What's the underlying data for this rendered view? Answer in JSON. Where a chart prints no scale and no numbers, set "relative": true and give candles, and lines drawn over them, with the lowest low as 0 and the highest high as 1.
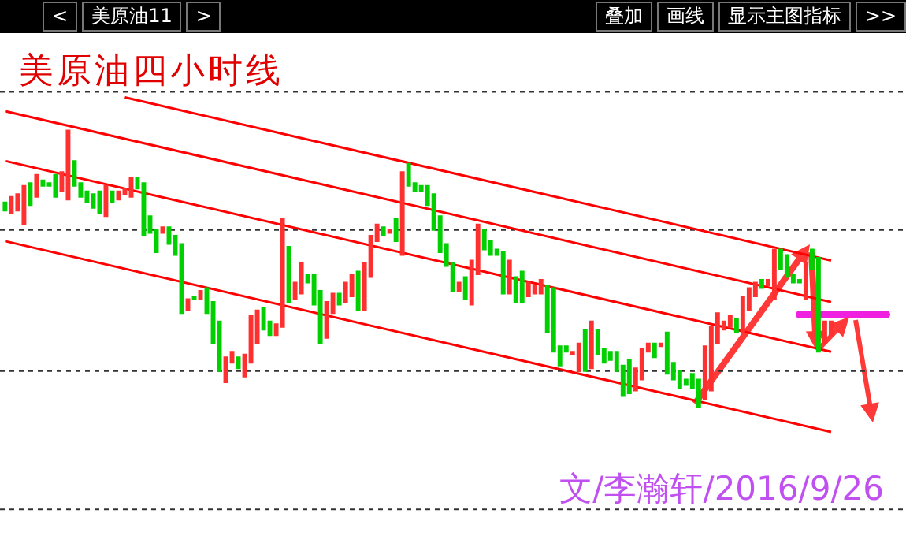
{
  "chart_data": {
    "type": "candlestick",
    "title": "美原油四小时线",
    "relative": true,
    "ref_lines": [
      {
        "axis": "y",
        "value": 1.14,
        "color": "#333333",
        "line_style": "dotted"
      },
      {
        "axis": "y",
        "value": 0.64,
        "color": "#333333",
        "line_style": "dotted"
      },
      {
        "axis": "y",
        "value": 0.13,
        "color": "#333333",
        "line_style": "dotted"
      },
      {
        "axis": "y",
        "value": -0.37,
        "color": "#333333",
        "line_style": "dotted"
      }
    ],
    "annotations": [
      "<",
      "美原油11",
      ">",
      "叠加",
      "画线",
      "显示主图指标",
      ">>",
      "文/李瀚轩/2016/9/26"
    ],
    "categories": [
      null,
      null,
      null,
      null,
      null,
      null,
      null,
      null,
      null,
      null,
      null,
      null,
      null,
      null,
      null,
      null,
      null,
      null,
      null,
      null,
      null,
      null,
      null,
      null,
      null,
      null,
      null,
      null,
      null,
      null,
      null,
      null,
      null,
      null,
      null,
      null,
      null,
      null,
      null,
      null,
      null,
      null,
      null,
      null,
      null,
      null,
      null,
      null,
      null,
      null,
      null,
      null,
      null,
      null,
      null,
      null,
      null,
      null,
      null,
      null,
      null,
      null,
      null,
      null,
      null,
      null,
      null,
      null,
      null,
      null,
      null,
      null,
      null,
      null,
      null,
      null,
      null,
      null,
      null,
      null,
      null,
      null,
      null,
      null,
      null,
      null,
      null,
      null,
      null,
      null,
      null,
      null,
      null,
      null,
      null,
      null,
      null,
      null,
      null,
      null,
      null,
      null,
      null,
      null,
      null,
      null,
      null,
      null,
      null,
      null,
      null,
      null,
      null,
      null,
      null,
      null,
      null,
      null,
      null,
      null,
      null,
      null,
      null,
      null,
      null,
      null,
      null,
      null,
      null,
      null,
      null,
      null
    ],
    "ohlc": [
      [
        0.74,
        0.74,
        0.71,
        0.71
      ],
      [
        0.7,
        0.76,
        0.7,
        0.76
      ],
      [
        0.71,
        0.77,
        0.71,
        0.77
      ],
      [
        0.66,
        0.8,
        0.66,
        0.8
      ],
      [
        0.81,
        0.81,
        0.73,
        0.73
      ],
      [
        0.76,
        0.84,
        0.76,
        0.84
      ],
      [
        0.82,
        0.82,
        0.8,
        0.8
      ],
      [
        0.81,
        0.81,
        0.8,
        0.8
      ],
      [
        0.84,
        0.84,
        0.76,
        0.76
      ],
      [
        0.78,
        0.85,
        0.78,
        0.85
      ],
      [
        0.75,
        1,
        0.75,
        1
      ],
      [
        0.89,
        0.89,
        0.8,
        0.8
      ],
      [
        0.81,
        0.81,
        0.76,
        0.76
      ],
      [
        0.78,
        0.78,
        0.74,
        0.74
      ],
      [
        0.77,
        0.77,
        0.72,
        0.72
      ],
      [
        0.78,
        0.78,
        0.7,
        0.7
      ],
      [
        0.69,
        0.8,
        0.69,
        0.8
      ],
      [
        0.78,
        0.78,
        0.74,
        0.74
      ],
      [
        0.75,
        0.78,
        0.75,
        0.78
      ],
      [
        0.77,
        0.79,
        0.77,
        0.79
      ],
      [
        0.76,
        0.83,
        0.76,
        0.83
      ],
      [
        0.83,
        0.83,
        0.79,
        0.79
      ],
      [
        0.81,
        0.81,
        0.62,
        0.62
      ],
      [
        0.69,
        0.69,
        0.63,
        0.63
      ],
      [
        0.64,
        0.64,
        0.56,
        0.56
      ],
      [
        0.63,
        0.65,
        0.63,
        0.65
      ],
      [
        0.65,
        0.65,
        0.59,
        0.59
      ],
      [
        0.62,
        0.62,
        0.55,
        0.55
      ],
      [
        0.59,
        0.59,
        0.34,
        0.34
      ],
      [
        0.35,
        0.39,
        0.35,
        0.39
      ],
      [
        0.4,
        0.4,
        0.39,
        0.39
      ],
      [
        0.39,
        0.42,
        0.39,
        0.42
      ],
      [
        0.43,
        0.43,
        0.34,
        0.34
      ],
      [
        0.38,
        0.38,
        0.23,
        0.23
      ],
      [
        0.31,
        0.31,
        0.13,
        0.13
      ],
      [
        0.09,
        0.18,
        0.09,
        0.18
      ],
      [
        0.16,
        0.2,
        0.16,
        0.2
      ],
      [
        0.18,
        0.18,
        0.14,
        0.14
      ],
      [
        0.11,
        0.19,
        0.11,
        0.19
      ],
      [
        0.16,
        0.33,
        0.16,
        0.33
      ],
      [
        0.23,
        0.35,
        0.23,
        0.35
      ],
      [
        0.36,
        0.36,
        0.28,
        0.28
      ],
      [
        0.31,
        0.31,
        0.26,
        0.26
      ],
      [
        0.26,
        0.3,
        0.26,
        0.3
      ],
      [
        0.29,
        0.68,
        0.29,
        0.68
      ],
      [
        0.58,
        0.58,
        0.38,
        0.38
      ],
      [
        0.39,
        0.45,
        0.39,
        0.45
      ],
      [
        0.41,
        0.52,
        0.41,
        0.52
      ],
      [
        0.48,
        0.48,
        0.45,
        0.45
      ],
      [
        0.48,
        0.48,
        0.37,
        0.37
      ],
      [
        0.42,
        0.42,
        0.23,
        0.23
      ],
      [
        0.25,
        0.38,
        0.25,
        0.38
      ],
      [
        0.34,
        0.41,
        0.34,
        0.41
      ],
      [
        0.41,
        0.41,
        0.37,
        0.37
      ],
      [
        0.38,
        0.45,
        0.38,
        0.45
      ],
      [
        0.4,
        0.48,
        0.4,
        0.48
      ],
      [
        0.49,
        0.49,
        0.35,
        0.35
      ],
      [
        0.35,
        0.52,
        0.35,
        0.52
      ],
      [
        0.47,
        0.62,
        0.47,
        0.62
      ],
      [
        0.6,
        0.66,
        0.6,
        0.66
      ],
      [
        0.65,
        0.65,
        0.62,
        0.62
      ],
      [
        0.63,
        0.64,
        0.63,
        0.64
      ],
      [
        0.68,
        0.68,
        0.6,
        0.6
      ],
      [
        0.55,
        0.85,
        0.55,
        0.85
      ],
      [
        0.88,
        0.88,
        0.8,
        0.8
      ],
      [
        0.81,
        0.81,
        0.78,
        0.78
      ],
      [
        0.8,
        0.8,
        0.78,
        0.78
      ],
      [
        0.8,
        0.8,
        0.73,
        0.73
      ],
      [
        0.77,
        0.77,
        0.64,
        0.64
      ],
      [
        0.69,
        0.69,
        0.56,
        0.56
      ],
      [
        0.59,
        0.59,
        0.51,
        0.51
      ],
      [
        0.52,
        0.52,
        0.42,
        0.42
      ],
      [
        0.42,
        0.45,
        0.42,
        0.45
      ],
      [
        0.47,
        0.47,
        0.39,
        0.39
      ],
      [
        0.37,
        0.53,
        0.37,
        0.53
      ],
      [
        0.48,
        0.66,
        0.48,
        0.66
      ],
      [
        0.64,
        0.64,
        0.57,
        0.57
      ],
      [
        0.6,
        0.6,
        0.55,
        0.55
      ],
      [
        0.57,
        0.57,
        0.55,
        0.55
      ],
      [
        0.56,
        0.56,
        0.41,
        0.41
      ],
      [
        0.41,
        0.53,
        0.41,
        0.53
      ],
      [
        0.47,
        0.47,
        0.38,
        0.38
      ],
      [
        0.49,
        0.49,
        0.38,
        0.38
      ],
      [
        0.4,
        0.45,
        0.4,
        0.45
      ],
      [
        0.41,
        0.44,
        0.41,
        0.44
      ],
      [
        0.41,
        0.46,
        0.41,
        0.46
      ],
      [
        0.44,
        0.44,
        0.27,
        0.27
      ],
      [
        0.43,
        0.43,
        0.2,
        0.2
      ],
      [
        0.22,
        0.22,
        0.15,
        0.15
      ],
      [
        0.22,
        0.22,
        0.2,
        0.2
      ],
      [
        0.19,
        0.2,
        0.19,
        0.2
      ],
      [
        0.13,
        0.23,
        0.13,
        0.23
      ],
      [
        0.28,
        0.28,
        0.13,
        0.13
      ],
      [
        0.14,
        0.31,
        0.14,
        0.31
      ],
      [
        0.28,
        0.28,
        0.19,
        0.19
      ],
      [
        0.21,
        0.21,
        0.16,
        0.16
      ],
      [
        0.2,
        0.2,
        0.17,
        0.17
      ],
      [
        0.2,
        0.2,
        0.13,
        0.13
      ],
      [
        0.15,
        0.15,
        0.04,
        0.04
      ],
      [
        0.17,
        0.17,
        0.05,
        0.05
      ],
      [
        0.06,
        0.14,
        0.06,
        0.14
      ],
      [
        0.1,
        0.21,
        0.1,
        0.21
      ],
      [
        0.2,
        0.23,
        0.2,
        0.23
      ],
      [
        0.23,
        0.23,
        0.18,
        0.18
      ],
      [
        0.22,
        0.23,
        0.22,
        0.23
      ],
      [
        0.27,
        0.27,
        0.12,
        0.12
      ],
      [
        0.16,
        0.16,
        0.1,
        0.1
      ],
      [
        0.13,
        0.13,
        0.07,
        0.07
      ],
      [
        0.1,
        0.1,
        0.08,
        0.08
      ],
      [
        0.12,
        0.12,
        0.07,
        0.07
      ],
      [
        0.1,
        0.1,
        0,
        0
      ],
      [
        0.03,
        0.22,
        0.03,
        0.22
      ],
      [
        0.06,
        0.29,
        0.06,
        0.29
      ],
      [
        0.23,
        0.34,
        0.23,
        0.34
      ],
      [
        0.28,
        0.31,
        0.28,
        0.31
      ],
      [
        0.29,
        0.33,
        0.29,
        0.33
      ],
      [
        0.32,
        0.32,
        0.27,
        0.27
      ],
      [
        0.27,
        0.4,
        0.27,
        0.4
      ],
      [
        0.35,
        0.43,
        0.35,
        0.43
      ],
      [
        0.4,
        0.45,
        0.4,
        0.45
      ],
      [
        0.46,
        0.46,
        0.43,
        0.43
      ],
      [
        0.44,
        0.46,
        0.44,
        0.46
      ],
      [
        0.39,
        0.57,
        0.39,
        0.57
      ],
      [
        0.57,
        0.57,
        0.5,
        0.5
      ],
      [
        0.55,
        0.55,
        0.47,
        0.47
      ],
      [
        0.48,
        0.48,
        0.45,
        0.45
      ],
      [
        0.46,
        0.46,
        0.45,
        0.45
      ],
      [
        0.39,
        0.52,
        0.39,
        0.52
      ],
      [
        0.57,
        0.57,
        0.5,
        0.5
      ],
      [
        0.54,
        0.54,
        0.2,
        0.2
      ],
      [
        0.23,
        0.31,
        0.23,
        0.31
      ],
      [
        0.26,
        0.31,
        0.26,
        0.31
      ]
    ],
    "series": [
      {
        "type": "line",
        "color": "#ff0000",
        "values": [
          null,
          null,
          null,
          null,
          null,
          null,
          null,
          null,
          null,
          null,
          null,
          null,
          null,
          null,
          null,
          null,
          null,
          null,
          null,
          1.12,
          null,
          null,
          null,
          null,
          null,
          null,
          null,
          null,
          null,
          null,
          null,
          null,
          null,
          null,
          null,
          null,
          null,
          null,
          null,
          null,
          null,
          null,
          null,
          null,
          null,
          null,
          null,
          null,
          null,
          null,
          null,
          null,
          null,
          null,
          null,
          null,
          null,
          null,
          null,
          null,
          null,
          null,
          null,
          null,
          null,
          null,
          null,
          null,
          null,
          null,
          null,
          null,
          null,
          null,
          null,
          null,
          null,
          null,
          null,
          null,
          null,
          null,
          null,
          null,
          null,
          null,
          null,
          null,
          null,
          null,
          null,
          null,
          null,
          null,
          null,
          null,
          null,
          null,
          null,
          null,
          null,
          null,
          null,
          null,
          null,
          null,
          null,
          null,
          null,
          null,
          null,
          null,
          null,
          null,
          null,
          null,
          null,
          null,
          null,
          null,
          null,
          null,
          null,
          null,
          null,
          null,
          null,
          null,
          null,
          null,
          null,
          0.53
        ]
      },
      {
        "type": "line",
        "color": "#ff0000",
        "values": [
          1.07,
          null,
          null,
          null,
          null,
          null,
          null,
          null,
          null,
          null,
          null,
          null,
          null,
          null,
          null,
          null,
          null,
          null,
          null,
          null,
          null,
          null,
          null,
          null,
          null,
          null,
          null,
          null,
          null,
          null,
          null,
          null,
          null,
          null,
          null,
          null,
          null,
          null,
          null,
          null,
          null,
          null,
          null,
          null,
          null,
          null,
          null,
          null,
          null,
          null,
          null,
          null,
          null,
          null,
          null,
          null,
          null,
          null,
          null,
          null,
          null,
          null,
          null,
          null,
          null,
          null,
          null,
          null,
          null,
          null,
          null,
          null,
          null,
          null,
          null,
          null,
          null,
          null,
          null,
          null,
          null,
          null,
          null,
          null,
          null,
          null,
          null,
          null,
          null,
          null,
          null,
          null,
          null,
          null,
          null,
          null,
          null,
          null,
          null,
          null,
          null,
          null,
          null,
          null,
          null,
          null,
          null,
          null,
          null,
          null,
          null,
          null,
          null,
          null,
          null,
          null,
          null,
          null,
          null,
          null,
          null,
          null,
          null,
          null,
          null,
          null,
          null,
          null,
          null,
          null,
          null,
          0.38
        ]
      },
      {
        "type": "line",
        "color": "#ff0000",
        "values": [
          0.89,
          null,
          null,
          null,
          null,
          null,
          null,
          null,
          null,
          null,
          null,
          null,
          null,
          null,
          null,
          null,
          null,
          null,
          null,
          null,
          null,
          null,
          null,
          null,
          null,
          null,
          null,
          null,
          null,
          null,
          null,
          null,
          null,
          null,
          null,
          null,
          null,
          null,
          null,
          null,
          null,
          null,
          null,
          null,
          null,
          null,
          null,
          null,
          null,
          null,
          null,
          null,
          null,
          null,
          null,
          null,
          null,
          null,
          null,
          null,
          null,
          null,
          null,
          null,
          null,
          null,
          null,
          null,
          null,
          null,
          null,
          null,
          null,
          null,
          null,
          null,
          null,
          null,
          null,
          null,
          null,
          null,
          null,
          null,
          null,
          null,
          null,
          null,
          null,
          null,
          null,
          null,
          null,
          null,
          null,
          null,
          null,
          null,
          null,
          null,
          null,
          null,
          null,
          null,
          null,
          null,
          null,
          null,
          null,
          null,
          null,
          null,
          null,
          null,
          null,
          null,
          null,
          null,
          null,
          null,
          null,
          null,
          null,
          null,
          null,
          null,
          null,
          null,
          null,
          null,
          null,
          0.2
        ]
      },
      {
        "type": "line",
        "color": "#ff0000",
        "values": [
          0.6,
          null,
          null,
          null,
          null,
          null,
          null,
          null,
          null,
          null,
          null,
          null,
          null,
          null,
          null,
          null,
          null,
          null,
          null,
          null,
          null,
          null,
          null,
          null,
          null,
          null,
          null,
          null,
          null,
          null,
          null,
          null,
          null,
          null,
          null,
          null,
          null,
          null,
          null,
          null,
          null,
          null,
          null,
          null,
          null,
          null,
          null,
          null,
          null,
          null,
          null,
          null,
          null,
          null,
          null,
          null,
          null,
          null,
          null,
          null,
          null,
          null,
          null,
          null,
          null,
          null,
          null,
          null,
          null,
          null,
          null,
          null,
          null,
          null,
          null,
          null,
          null,
          null,
          null,
          null,
          null,
          null,
          null,
          null,
          null,
          null,
          null,
          null,
          null,
          null,
          null,
          null,
          null,
          null,
          null,
          null,
          null,
          null,
          null,
          null,
          null,
          null,
          null,
          null,
          null,
          null,
          null,
          null,
          null,
          null,
          null,
          null,
          null,
          null,
          null,
          null,
          null,
          null,
          null,
          null,
          null,
          null,
          null,
          null,
          null,
          null,
          null,
          null,
          null,
          null,
          null,
          -0.09
        ]
      }
    ]
  }
}
